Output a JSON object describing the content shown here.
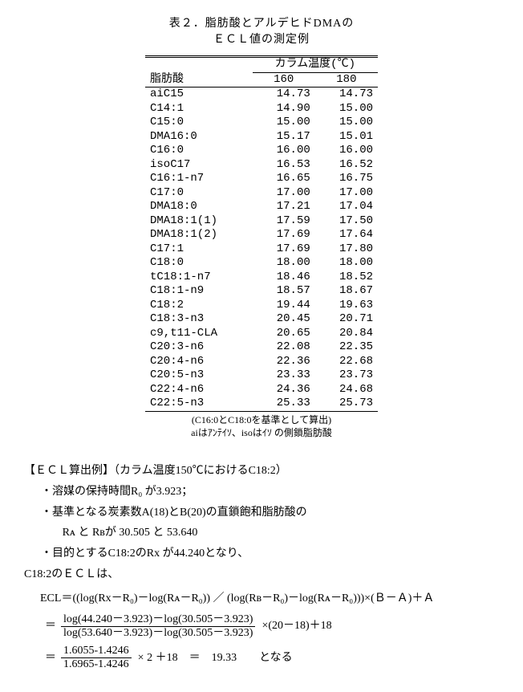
{
  "title_line1": "表２．脂肪酸とアルデヒドDMAの",
  "title_line2": "ＥＣＬ値の測定例",
  "table": {
    "row_header": "脂肪酸",
    "super_header": "カラム温度(℃)",
    "col_headers": [
      "160",
      "180"
    ],
    "rows": [
      [
        "aiC15",
        "14.73",
        "14.73"
      ],
      [
        "C14:1",
        "14.90",
        "15.00"
      ],
      [
        "C15:0",
        "15.00",
        "15.00"
      ],
      [
        "DMA16:0",
        "15.17",
        "15.01"
      ],
      [
        "C16:0",
        "16.00",
        "16.00"
      ],
      [
        "isoC17",
        "16.53",
        "16.52"
      ],
      [
        "C16:1-n7",
        "16.65",
        "16.75"
      ],
      [
        "C17:0",
        "17.00",
        "17.00"
      ],
      [
        "DMA18:0",
        "17.21",
        "17.04"
      ],
      [
        "DMA18:1(1)",
        "17.59",
        "17.50"
      ],
      [
        "DMA18:1(2)",
        "17.69",
        "17.64"
      ],
      [
        "C17:1",
        "17.69",
        "17.80"
      ],
      [
        "C18:0",
        "18.00",
        "18.00"
      ],
      [
        "tC18:1-n7",
        "18.46",
        "18.52"
      ],
      [
        "C18:1-n9",
        "18.57",
        "18.67"
      ],
      [
        "C18:2",
        "19.44",
        "19.63"
      ],
      [
        "C18:3-n3",
        "20.45",
        "20.71"
      ],
      [
        "c9,t11-CLA",
        "20.65",
        "20.84"
      ],
      [
        "C20:3-n6",
        "22.08",
        "22.35"
      ],
      [
        "C20:4-n6",
        "22.36",
        "22.68"
      ],
      [
        "C20:5-n3",
        "23.33",
        "23.73"
      ],
      [
        "C22:4-n6",
        "24.36",
        "24.68"
      ],
      [
        "C22:5-n3",
        "25.33",
        "25.73"
      ]
    ],
    "footnote_1": "(C16:0とC18:0を基準として算出)",
    "footnote_2": "aiはｱﾝﾃｲｿ、isoはｲｿ の側鎖脂肪酸"
  },
  "calc": {
    "heading": "【ＥＣＬ算出例】（カラム温度150℃におけるC18:2）",
    "l1": "・溶媒の保持時間R₀ が3.923；",
    "l2": "・基準となる炭素数A(18)とB(20)の直鎖飽和脂肪酸の",
    "l2b": "Rᴀ と Rʙが 30.505 と 53.640",
    "l3": "・目的とするC18:2のRx が44.240となり、",
    "l4": "C18:2のＥＣＬは、",
    "formula_main": "ECL＝((log(Rx－R₀)－log(Rᴀ－R₀)) ／ (log(Rʙ－R₀)－log(Rᴀ－R₀)))×(Ｂ－Ａ)＋Ａ",
    "frac1_num": "log(44.240－3.923)－log(30.505－3.923)",
    "frac1_den": "log(53.640－3.923)－log(30.505－3.923)",
    "frac1_tail": "×(20－18)＋18",
    "frac2_num": "1.6055-1.4246",
    "frac2_den": "1.6965-1.4246",
    "frac2_tail": "× 2 ＋18　＝　19.33　　となる"
  }
}
